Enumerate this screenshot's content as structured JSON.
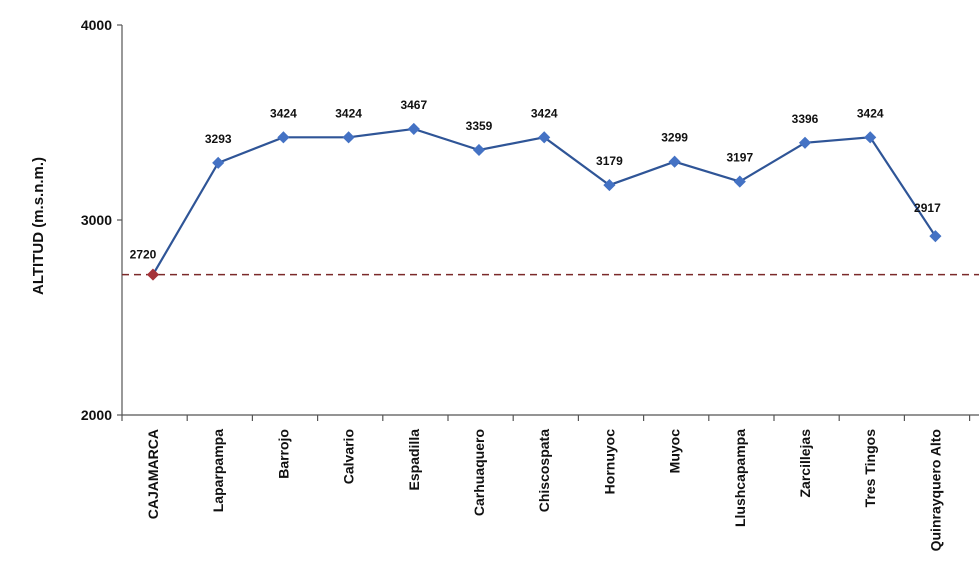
{
  "chart_data": {
    "type": "line",
    "title": "",
    "xlabel": "",
    "ylabel": "ALTITUD (m.s.n.m.)",
    "ylim": [
      2000,
      4000
    ],
    "yticks": [
      2000,
      3000,
      4000
    ],
    "grid": false,
    "legend": "none",
    "categories": [
      "CAJAMARCA",
      "Laparpampa",
      "Barrojo",
      "Calvario",
      "Espadilla",
      "Carhuaquero",
      "Chiscospata",
      "Hornuyoc",
      "Muyoc",
      "Llushcapampa",
      "Zarcillejas",
      "Tres Tingos",
      "Quinrayquero Alto"
    ],
    "series": [
      {
        "values": [
          2720,
          3293,
          3424,
          3424,
          3467,
          3359,
          3424,
          3179,
          3299,
          3197,
          3396,
          3424,
          2917
        ]
      }
    ],
    "data_labels": [
      "2720",
      "3293",
      "3424",
      "3424",
      "3467",
      "3359",
      "3424",
      "3179",
      "3299",
      "3197",
      "3396",
      "3424",
      "2917"
    ],
    "reference_line": {
      "value": 2720,
      "style": "dashed"
    },
    "colors": {
      "line": "#2f5597",
      "marker": "#4472c4",
      "first_marker": "#a5333a",
      "reference": "#7b2a2a",
      "axis": "#555555"
    }
  }
}
